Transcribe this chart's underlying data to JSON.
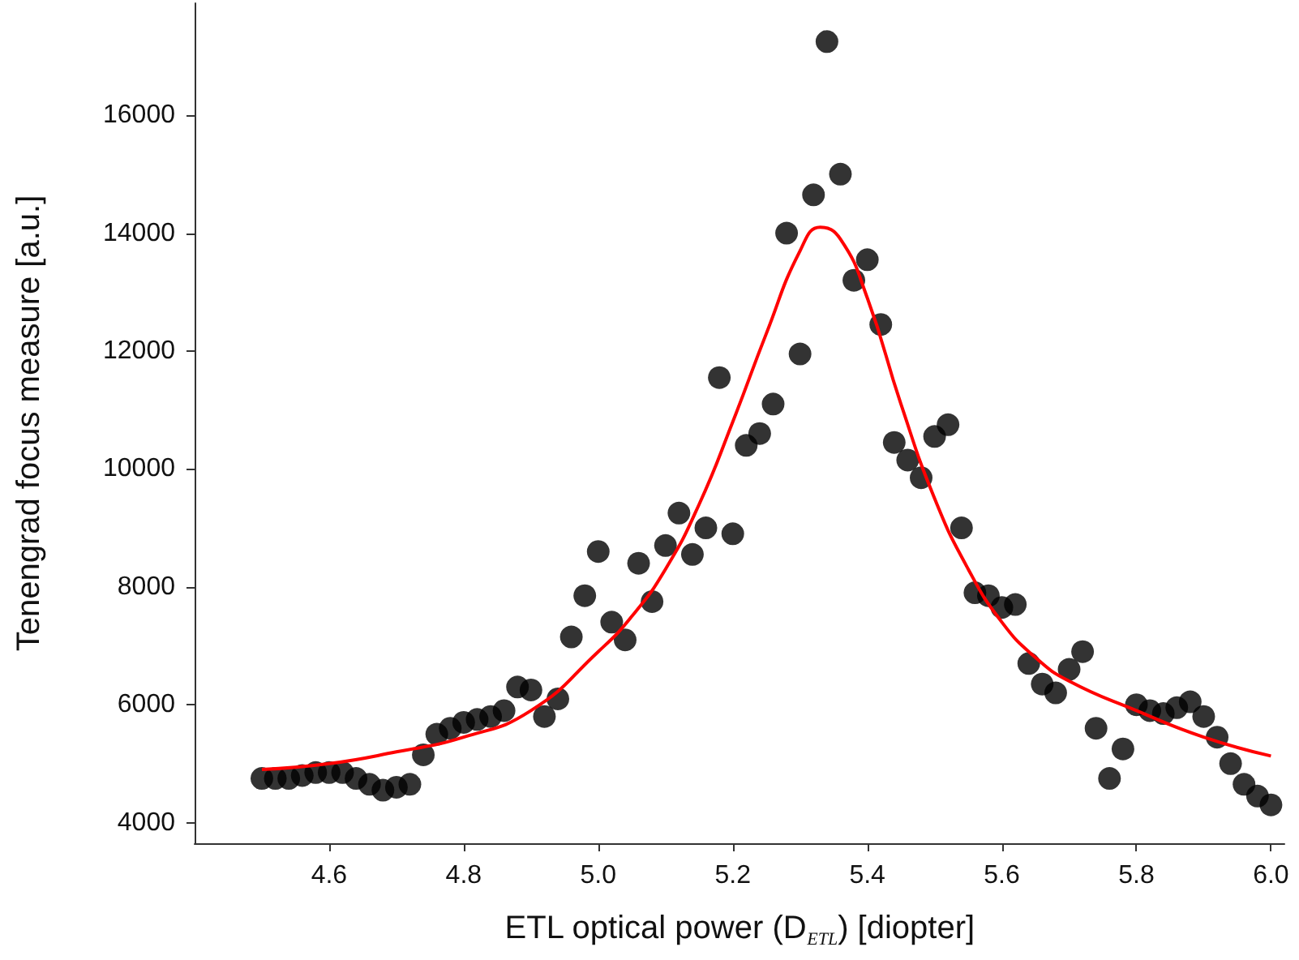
{
  "chart_data": {
    "type": "scatter",
    "xlabel": "ETL optical power (D$_{ETL}$) [diopter]",
    "ylabel": "Tenengrad focus measure [a.u.]",
    "xlim": [
      4.4,
      6.02
    ],
    "xticks": [
      4.6,
      4.8,
      {
        "value": 5,
        "label": "5.0"
      },
      5.2,
      5.4,
      5.6,
      5.8,
      {
        "value": 6,
        "label": "6.0"
      }
    ],
    "ylim": [
      3650,
      17900
    ],
    "yticks": [
      4000,
      6000,
      8000,
      10000,
      12000,
      14000,
      16000
    ],
    "grid": false,
    "series": [
      {
        "type": "scatter",
        "color": "#000000",
        "marker": "circle",
        "x": [
          4.5,
          4.52,
          4.54,
          4.56,
          4.58,
          4.6,
          4.62,
          4.64,
          4.66,
          4.68,
          4.7,
          4.72,
          4.74,
          4.76,
          4.78,
          4.8,
          4.82,
          4.84,
          4.86,
          4.88,
          4.9,
          4.92,
          4.94,
          4.96,
          4.98,
          5.0,
          5.02,
          5.04,
          5.06,
          5.08,
          5.1,
          5.12,
          5.14,
          5.16,
          5.18,
          5.2,
          5.22,
          5.24,
          5.26,
          5.28,
          5.3,
          5.32,
          5.34,
          5.36,
          5.38,
          5.4,
          5.42,
          5.44,
          5.46,
          5.48,
          5.5,
          5.52,
          5.54,
          5.56,
          5.58,
          5.6,
          5.62,
          5.64,
          5.66,
          5.68,
          5.7,
          5.72,
          5.74,
          5.76,
          5.78,
          5.8,
          5.82,
          5.84,
          5.86,
          5.88,
          5.9,
          5.92,
          5.94,
          5.96,
          5.98,
          6.0
        ],
        "values": [
          4750,
          4750,
          4750,
          4800,
          4850,
          4850,
          4850,
          4750,
          4650,
          4550,
          4600,
          4650,
          5150,
          5500,
          5600,
          5700,
          5750,
          5800,
          5900,
          6300,
          6250,
          5800,
          6100,
          7150,
          7850,
          8600,
          7400,
          7100,
          8400,
          7750,
          8700,
          9250,
          8550,
          9000,
          11550,
          8900,
          10400,
          10600,
          11100,
          14000,
          11950,
          14650,
          17250,
          15000,
          13200,
          13550,
          12450,
          10450,
          10150,
          9850,
          10550,
          10750,
          9000,
          7900,
          7850,
          7650,
          7700,
          6700,
          6350,
          6200,
          6600,
          6900,
          5600,
          4750,
          5250,
          6000,
          5900,
          5850,
          5950,
          6050,
          5800,
          5450,
          5000,
          4650,
          4450,
          4300
        ]
      },
      {
        "type": "line",
        "color": "#ff0000",
        "marker": "none",
        "x": [
          4.5,
          4.6,
          4.7,
          4.8,
          4.9,
          5.0,
          5.05,
          5.1,
          5.15,
          5.2,
          5.25,
          5.3,
          5.33,
          5.36,
          5.4,
          5.45,
          5.5,
          5.55,
          5.6,
          5.65,
          5.7,
          5.8,
          5.9,
          6.0
        ],
        "values": [
          4900,
          5000,
          5200,
          5450,
          5900,
          6900,
          7500,
          8300,
          9400,
          10800,
          12300,
          13700,
          14100,
          13900,
          12900,
          11100,
          9500,
          8300,
          7400,
          6800,
          6400,
          5900,
          5450,
          5130
        ]
      }
    ]
  }
}
